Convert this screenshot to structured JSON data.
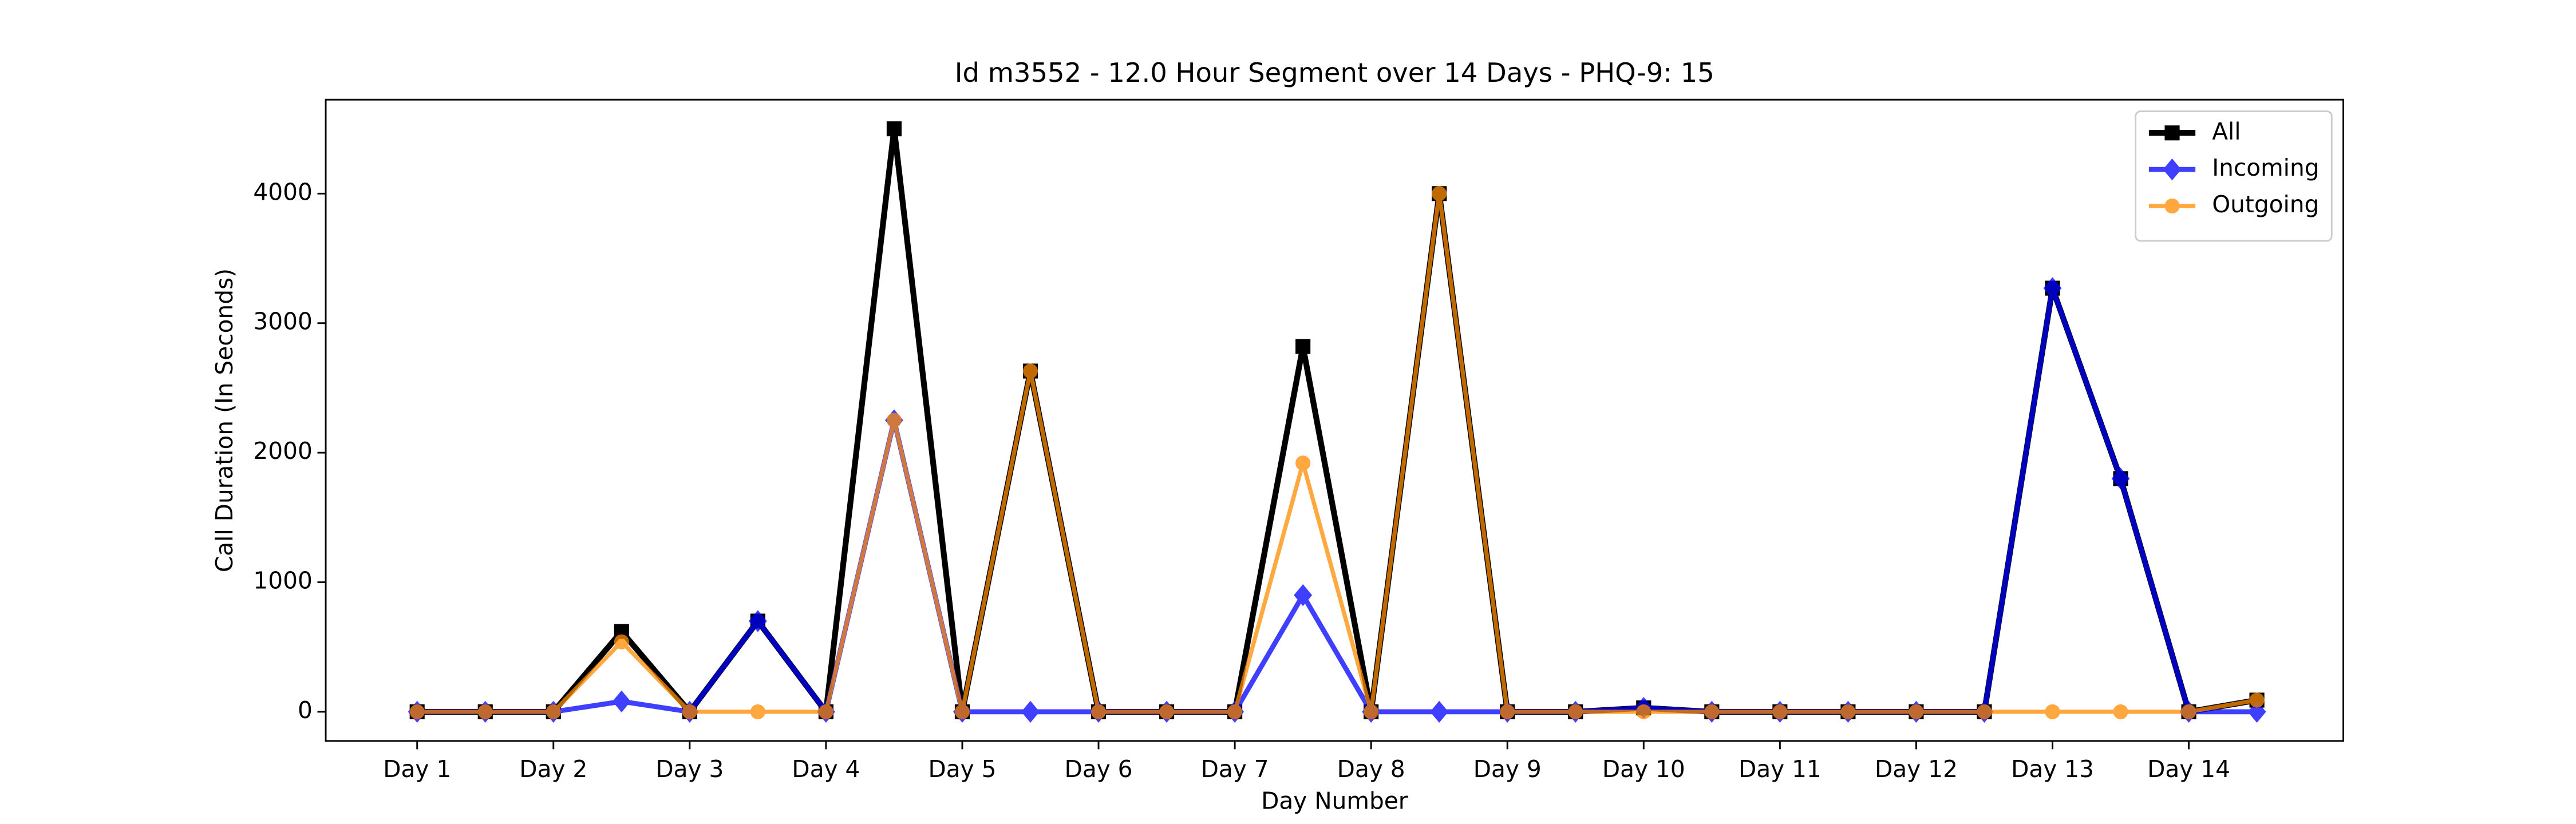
{
  "chart_data": {
    "type": "line",
    "title": "Id m3552 - 12.0 Hour Segment over 14 Days - PHQ-9: 15",
    "x_label": "Day Number",
    "y_label": "Call Duration (In Seconds)",
    "categories": [
      "Day 1",
      null,
      "Day 2",
      null,
      "Day 3",
      null,
      "Day 4",
      null,
      "Day 5",
      null,
      "Day 6",
      null,
      "Day 7",
      null,
      "Day 8",
      null,
      "Day 9",
      null,
      "Day 10",
      null,
      "Day 11",
      null,
      "Day 12",
      null,
      "Day 13",
      null,
      "Day 14",
      null
    ],
    "series": [
      {
        "name": "All",
        "color": "#000000",
        "marker": "square",
        "values": [
          0,
          0,
          0,
          620,
          0,
          700,
          0,
          4500,
          0,
          2630,
          0,
          0,
          0,
          2820,
          0,
          4000,
          0,
          0,
          30,
          0,
          0,
          0,
          0,
          0,
          3270,
          1800,
          0,
          90
        ]
      },
      {
        "name": "Incoming",
        "color": "#0000ff",
        "marker": "diamond",
        "values": [
          0,
          0,
          0,
          80,
          0,
          700,
          0,
          2250,
          0,
          0,
          0,
          0,
          0,
          900,
          0,
          0,
          0,
          0,
          30,
          0,
          0,
          0,
          0,
          0,
          3270,
          1800,
          0,
          0
        ]
      },
      {
        "name": "Outgoing",
        "color": "#ff8c00",
        "marker": "circle",
        "values": [
          0,
          0,
          0,
          540,
          0,
          0,
          0,
          2250,
          0,
          2630,
          0,
          0,
          0,
          1920,
          0,
          4000,
          0,
          0,
          0,
          0,
          0,
          0,
          0,
          0,
          0,
          0,
          0,
          90
        ]
      }
    ],
    "ylim": [
      -225,
      4725
    ],
    "yticks": [
      0,
      1000,
      2000,
      3000,
      4000
    ],
    "grid": false,
    "legend": "upper right"
  }
}
